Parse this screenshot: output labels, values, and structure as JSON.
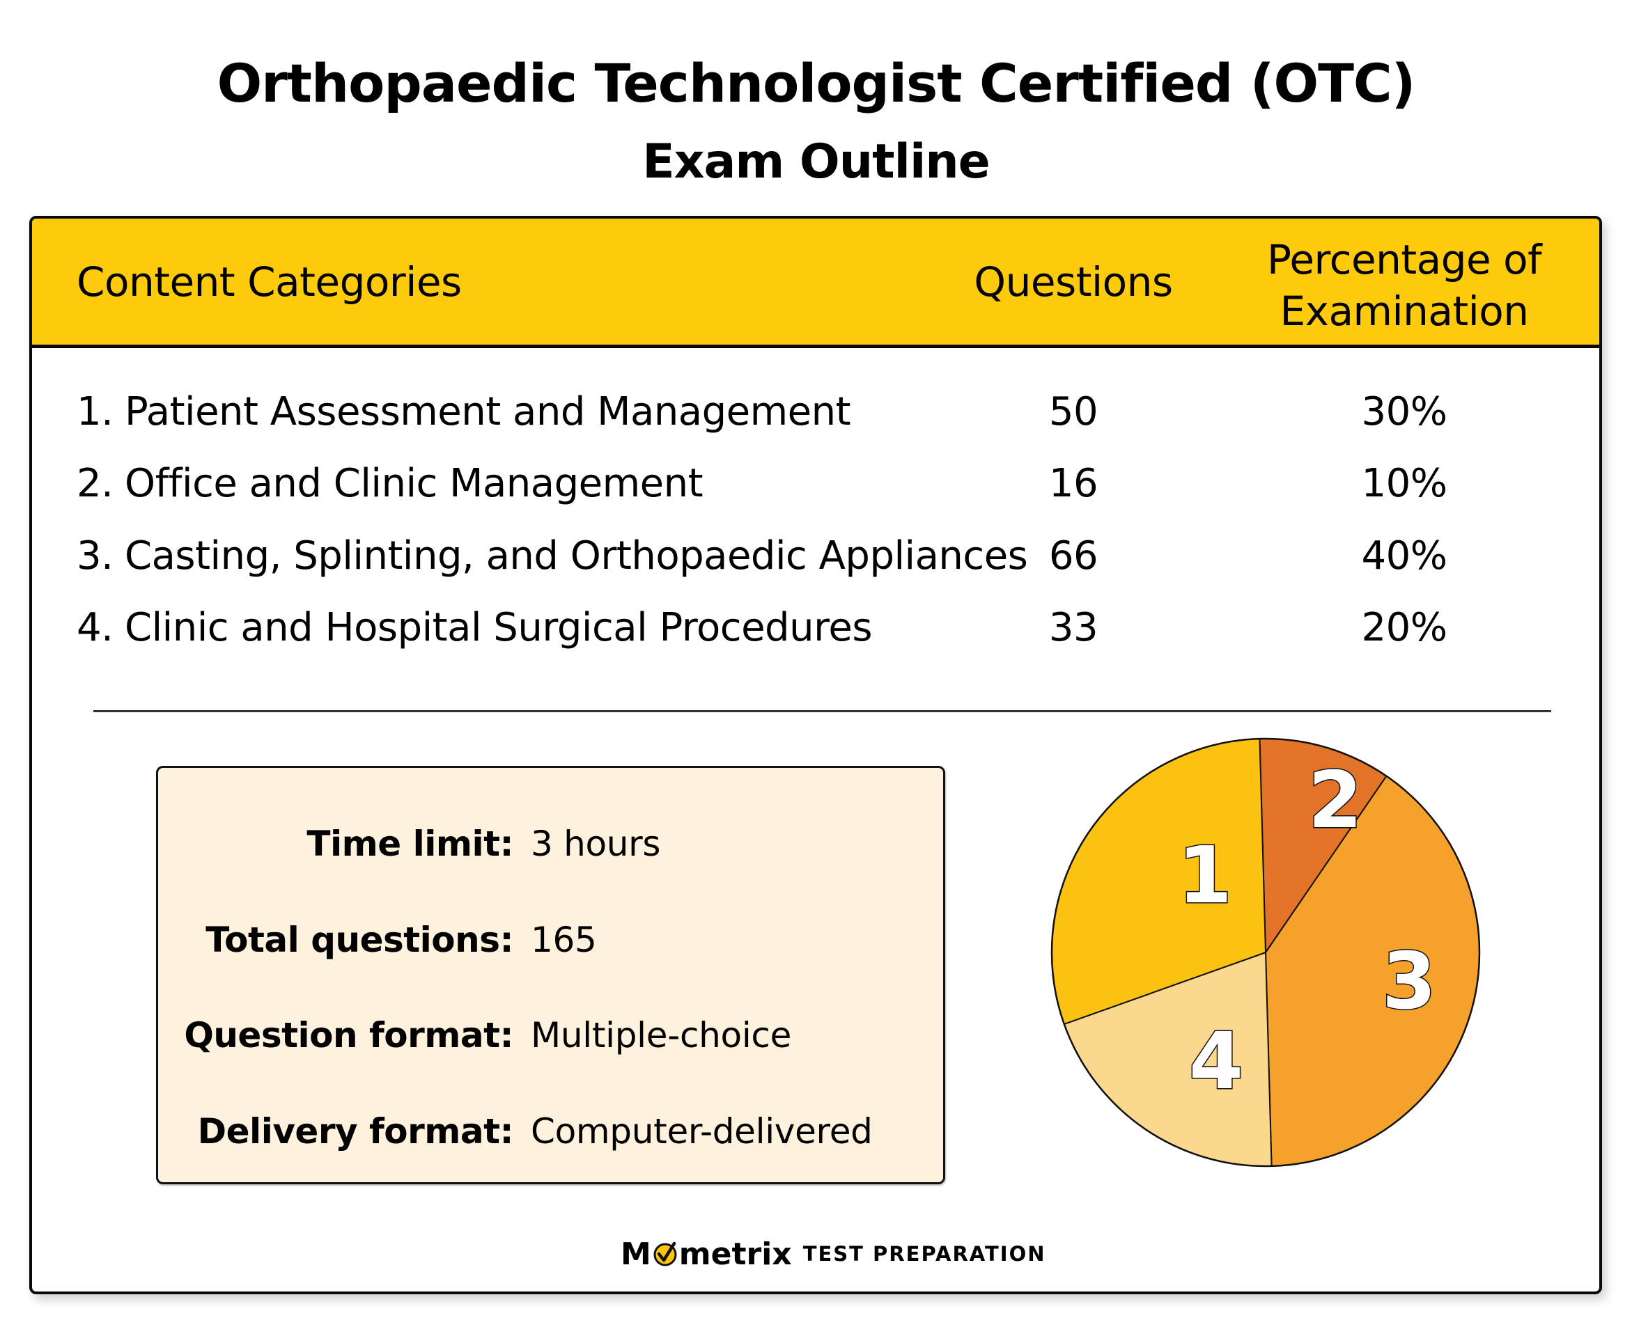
{
  "title": {
    "main": "Orthopaedic Technologist Certified (OTC)",
    "sub": "Exam Outline"
  },
  "table": {
    "headers": {
      "category": "Content Categories",
      "questions": "Questions",
      "percentage_line1": "Percentage of",
      "percentage_line2": "Examination"
    },
    "rows": [
      {
        "num": "1.",
        "label": "Patient Assessment and Management",
        "questions": "50",
        "percentage": "30%"
      },
      {
        "num": "2.",
        "label": "Office and Clinic Management",
        "questions": "16",
        "percentage": "10%"
      },
      {
        "num": "3.",
        "label": "Casting, Splinting, and Orthopaedic Appliances",
        "questions": "66",
        "percentage": "40%"
      },
      {
        "num": "4.",
        "label": "Clinic and Hospital Surgical Procedures",
        "questions": "33",
        "percentage": "20%"
      }
    ]
  },
  "info": {
    "items": [
      {
        "key": "Time limit:",
        "value": "3 hours"
      },
      {
        "key": "Total questions:",
        "value": "165"
      },
      {
        "key": "Question format:",
        "value": "Multiple-choice"
      },
      {
        "key": "Delivery format:",
        "value": "Computer-delivered"
      }
    ]
  },
  "colors": {
    "header_band": "#fdcb0b",
    "info_box": "#fef2df",
    "slice_1": "#fcc211",
    "slice_2": "#e37326",
    "slice_3": "#f6a12c",
    "slice_4": "#fbd88e"
  },
  "logo": {
    "brand_prefix": "M",
    "brand_suffix": "metrix",
    "tagline": "TEST PREPARATION"
  },
  "chart_data": {
    "type": "pie",
    "title": "",
    "categories": [
      "1",
      "2",
      "3",
      "4"
    ],
    "labels": [
      "Patient Assessment and Management",
      "Office and Clinic Management",
      "Casting, Splinting, and Orthopaedic Appliances",
      "Clinic and Hospital Surgical Procedures"
    ],
    "values": [
      30,
      10,
      40,
      20
    ],
    "questions": [
      50,
      16,
      66,
      33
    ],
    "slice_colors": [
      "#fcc211",
      "#e37326",
      "#f6a12c",
      "#fbd88e"
    ],
    "slice_labels": [
      "1",
      "2",
      "3",
      "4"
    ],
    "start_angle_deg": -1.6,
    "order_clockwise_from_top": [
      "2",
      "3",
      "4",
      "1"
    ],
    "legend": "none (numbers inside slices correspond to table rows)"
  }
}
